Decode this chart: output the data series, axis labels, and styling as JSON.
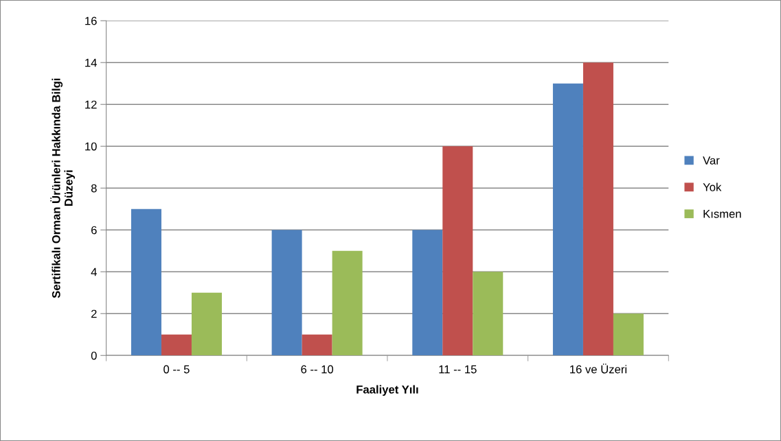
{
  "chart_data": {
    "type": "bar",
    "xlabel": "Faaliyet Yılı",
    "ylabel": "Sertifikalı Orman Ürünleri Hakkında Bilgi\nDüzeyi",
    "categories": [
      "0 -- 5",
      "6 -- 10",
      "11 -- 15",
      "16 ve Üzeri"
    ],
    "series": [
      {
        "name": "Var",
        "color": "#4f81bd",
        "values": [
          7,
          6,
          6,
          13
        ]
      },
      {
        "name": "Yok",
        "color": "#c0504d",
        "values": [
          1,
          1,
          10,
          14
        ]
      },
      {
        "name": "Kısmen",
        "color": "#9bbb59",
        "values": [
          3,
          5,
          4,
          2
        ]
      }
    ],
    "ylim": [
      0,
      16
    ],
    "yticks": [
      0,
      2,
      4,
      6,
      8,
      10,
      12,
      14,
      16
    ],
    "grid": "y",
    "legend": "right"
  }
}
